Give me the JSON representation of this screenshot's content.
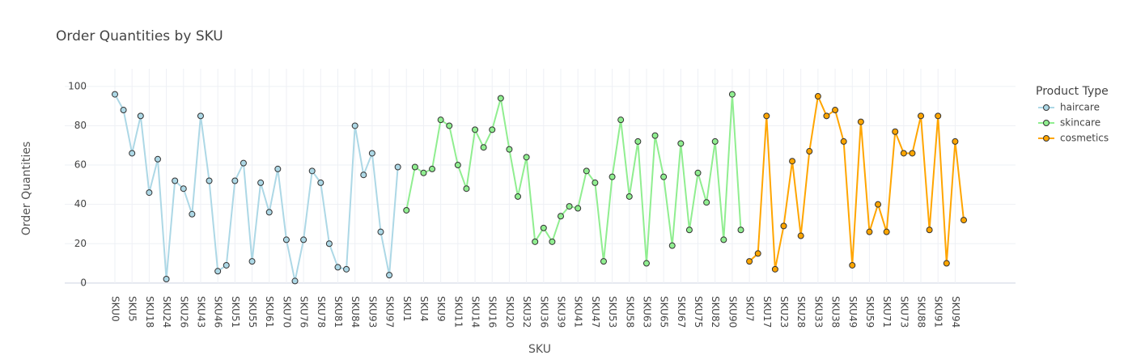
{
  "chart_data": {
    "type": "line",
    "title": "Order Quantities by SKU",
    "x_label": "SKU",
    "y_label": "Order Quantities",
    "legend_title": "Product Type",
    "legend_position": "right",
    "categories": [
      "SKU0",
      null,
      "SKU5",
      null,
      "SKU18",
      null,
      "SKU24",
      null,
      "SKU26",
      null,
      "SKU43",
      null,
      "SKU46",
      null,
      "SKU51",
      null,
      "SKU55",
      null,
      "SKU61",
      null,
      "SKU70",
      null,
      "SKU76",
      null,
      "SKU78",
      null,
      "SKU81",
      null,
      "SKU84",
      null,
      "SKU93",
      null,
      "SKU97",
      null,
      "SKU1",
      null,
      "SKU4",
      null,
      "SKU9",
      null,
      "SKU11",
      null,
      "SKU14",
      null,
      "SKU16",
      null,
      "SKU20",
      null,
      "SKU32",
      null,
      "SKU36",
      null,
      "SKU39",
      null,
      "SKU41",
      null,
      "SKU47",
      null,
      "SKU53",
      null,
      "SKU58",
      null,
      "SKU63",
      null,
      "SKU65",
      null,
      "SKU67",
      null,
      "SKU75",
      null,
      "SKU82",
      null,
      "SKU90",
      null,
      "SKU7",
      null,
      "SKU17",
      null,
      "SKU23",
      null,
      "SKU28",
      null,
      "SKU33",
      null,
      "SKU38",
      null,
      "SKU49",
      null,
      "SKU59",
      null,
      "SKU71",
      null,
      "SKU73",
      null,
      "SKU88",
      null,
      "SKU91",
      null,
      "SKU94",
      null
    ],
    "series": [
      {
        "name": "haircare",
        "color": "#add8e6",
        "values": [
          96,
          88,
          66,
          85,
          46,
          63,
          2,
          52,
          48,
          35,
          85,
          52,
          6,
          9,
          52,
          61,
          11,
          51,
          36,
          58,
          22,
          1,
          22,
          57,
          51,
          20,
          8,
          7,
          80,
          55,
          66,
          26,
          4,
          59,
          null,
          null,
          null,
          null,
          null,
          null,
          null,
          null,
          null,
          null,
          null,
          null,
          null,
          null,
          null,
          null,
          null,
          null,
          null,
          null,
          null,
          null,
          null,
          null,
          null,
          null,
          null,
          null,
          null,
          null,
          null,
          null,
          null,
          null,
          null,
          null,
          null,
          null,
          null,
          null,
          null,
          null,
          null,
          null,
          null,
          null,
          null,
          null,
          null,
          null,
          null,
          null,
          null,
          null,
          null,
          null,
          null,
          null,
          null,
          null,
          null,
          null,
          null,
          null,
          null,
          null
        ]
      },
      {
        "name": "skincare",
        "color": "#90ee90",
        "values": [
          null,
          null,
          null,
          null,
          null,
          null,
          null,
          null,
          null,
          null,
          null,
          null,
          null,
          null,
          null,
          null,
          null,
          null,
          null,
          null,
          null,
          null,
          null,
          null,
          null,
          null,
          null,
          null,
          null,
          null,
          null,
          null,
          null,
          null,
          37,
          59,
          56,
          58,
          83,
          80,
          60,
          48,
          78,
          69,
          78,
          94,
          68,
          44,
          64,
          21,
          28,
          21,
          34,
          39,
          38,
          57,
          51,
          11,
          54,
          83,
          44,
          72,
          10,
          75,
          54,
          19,
          71,
          27,
          56,
          41,
          72,
          22,
          96,
          27,
          null,
          null,
          null,
          null,
          null,
          null,
          null,
          null,
          null,
          null,
          null,
          null,
          null,
          null,
          null,
          null,
          null,
          null,
          null,
          null,
          null,
          null,
          null,
          null,
          null,
          null
        ]
      },
      {
        "name": "cosmetics",
        "color": "#ffa500",
        "values": [
          null,
          null,
          null,
          null,
          null,
          null,
          null,
          null,
          null,
          null,
          null,
          null,
          null,
          null,
          null,
          null,
          null,
          null,
          null,
          null,
          null,
          null,
          null,
          null,
          null,
          null,
          null,
          null,
          null,
          null,
          null,
          null,
          null,
          null,
          null,
          null,
          null,
          null,
          null,
          null,
          null,
          null,
          null,
          null,
          null,
          null,
          null,
          null,
          null,
          null,
          null,
          null,
          null,
          null,
          null,
          null,
          null,
          null,
          null,
          null,
          null,
          null,
          null,
          null,
          null,
          null,
          null,
          null,
          null,
          null,
          null,
          null,
          null,
          null,
          11,
          15,
          85,
          7,
          29,
          62,
          24,
          67,
          95,
          85,
          88,
          72,
          9,
          82,
          26,
          40,
          26,
          77,
          66,
          66,
          85,
          27,
          85,
          10,
          72,
          32
        ]
      }
    ],
    "ylim": [
      -5,
      109
    ],
    "yticks": [
      0,
      20,
      40,
      60,
      80,
      100
    ],
    "grid": true
  }
}
